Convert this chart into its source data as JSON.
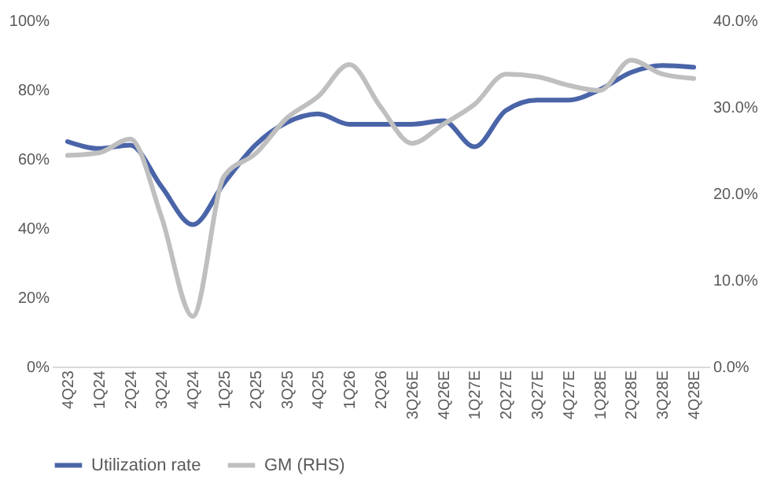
{
  "chart_data": {
    "type": "line",
    "categories": [
      "4Q23",
      "1Q24",
      "2Q24",
      "3Q24",
      "4Q24",
      "1Q25",
      "2Q25",
      "3Q25",
      "4Q25",
      "1Q26",
      "2Q26",
      "3Q26E",
      "4Q26E",
      "1Q27E",
      "2Q27E",
      "3Q27E",
      "4Q27E",
      "1Q28E",
      "2Q28E",
      "3Q28E",
      "4Q28E"
    ],
    "series": [
      {
        "name": "Utilization rate",
        "color": "#4a64a8",
        "values": [
          65,
          63,
          64,
          52,
          41,
          53,
          64,
          70.5,
          73,
          70,
          70,
          70,
          71,
          63.5,
          74,
          77,
          77,
          80,
          85,
          87,
          86.5
        ]
      },
      {
        "name": "GM (RHS)",
        "color": "#bfbfbf",
        "axis": "y2",
        "values": [
          24.4,
          24.7,
          26.3,
          17.3,
          5.8,
          22,
          24.6,
          28.7,
          31.2,
          34.9,
          30,
          25.8,
          28,
          30.3,
          33.8,
          33.5,
          32.5,
          31.9,
          35.4,
          33.8,
          33.3
        ]
      }
    ],
    "ylim": [
      0,
      100
    ],
    "yticks": [
      {
        "value": 0,
        "label": "0%"
      },
      {
        "value": 20,
        "label": "20%"
      },
      {
        "value": 40,
        "label": "40%"
      },
      {
        "value": 60,
        "label": "60%"
      },
      {
        "value": 80,
        "label": "80%"
      },
      {
        "value": 100,
        "label": "100%"
      }
    ],
    "y2lim": [
      0,
      40
    ],
    "y2ticks": [
      {
        "value": 0,
        "label": "0.0%"
      },
      {
        "value": 10,
        "label": "10.0%"
      },
      {
        "value": 20,
        "label": "20.0%"
      },
      {
        "value": 30,
        "label": "30.0%"
      },
      {
        "value": 40,
        "label": "40.0%"
      }
    ],
    "legend": "bottom",
    "grid": false,
    "marker": "none",
    "line_style": "solid"
  }
}
